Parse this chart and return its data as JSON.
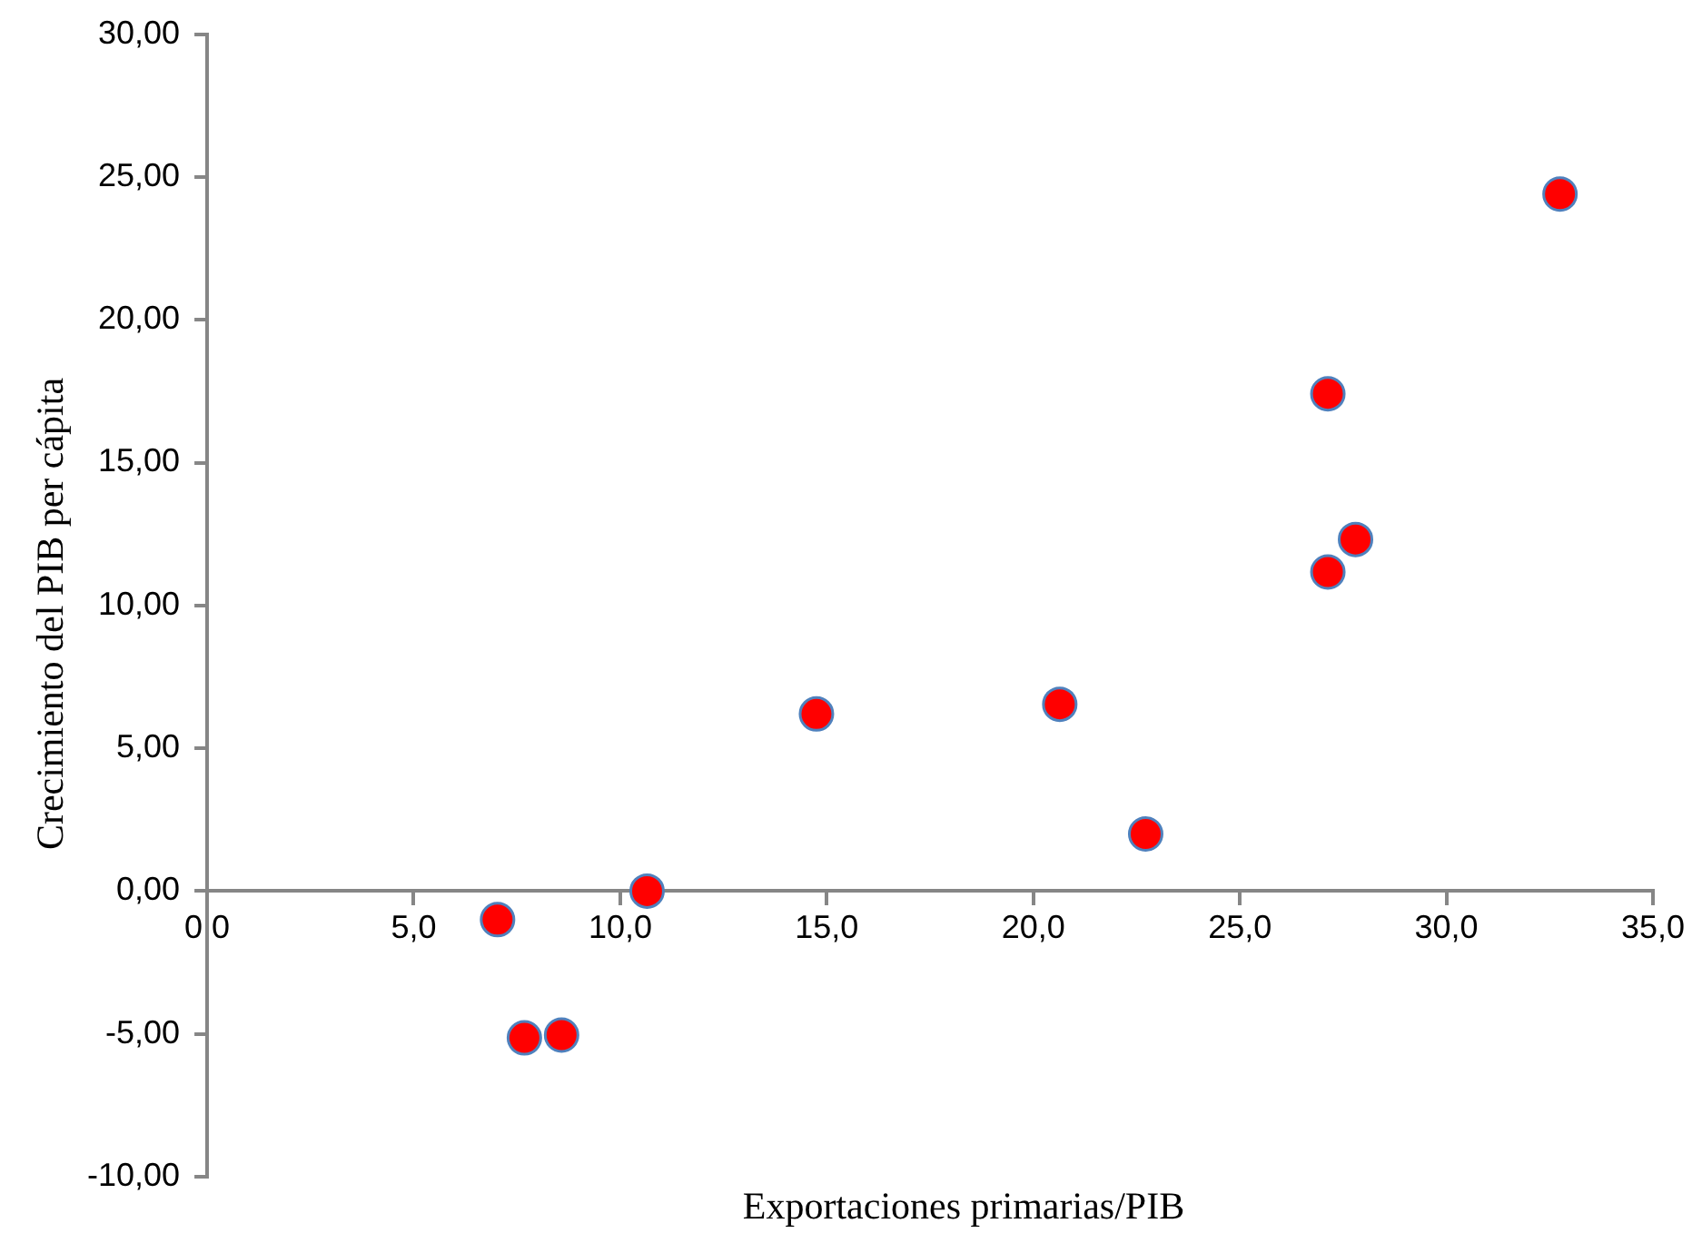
{
  "chart_data": {
    "type": "scatter",
    "xlabel": "Exportaciones primarias/PIB",
    "ylabel": "Crecimiento del PIB per cápita",
    "x": [
      7.03,
      7.68,
      8.58,
      10.65,
      14.75,
      20.64,
      22.72,
      27.13,
      27.8,
      27.13,
      32.75
    ],
    "series": [
      {
        "color": "#ff0000",
        "values": [
          -1.0,
          -5.14,
          -5.04,
          0.0,
          6.2,
          6.54,
          2.0,
          11.17,
          12.31,
          17.41,
          24.4
        ]
      }
    ],
    "marker": "circle",
    "grid": false,
    "legend": false,
    "xlim": [
      0,
      35
    ],
    "xticks": [
      {
        "value": 0,
        "label": "0,0"
      },
      {
        "value": 5,
        "label": "5,0"
      },
      {
        "value": 10,
        "label": "10,0"
      },
      {
        "value": 15,
        "label": "15,0"
      },
      {
        "value": 20,
        "label": "20,0"
      },
      {
        "value": 25,
        "label": "25,0"
      },
      {
        "value": 30,
        "label": "30,0"
      },
      {
        "value": 35,
        "label": "35,0"
      }
    ],
    "ylim": [
      -10,
      30
    ],
    "yticks": [
      {
        "value": -10,
        "label": "-10,00"
      },
      {
        "value": -5,
        "label": "-5,00"
      },
      {
        "value": 0,
        "label": "0,00"
      },
      {
        "value": 5,
        "label": "5,00"
      },
      {
        "value": 10,
        "label": "10,00"
      },
      {
        "value": 15,
        "label": "15,00"
      },
      {
        "value": 20,
        "label": "20,00"
      },
      {
        "value": 25,
        "label": "25,00"
      },
      {
        "value": 30,
        "label": "30,00"
      }
    ]
  }
}
